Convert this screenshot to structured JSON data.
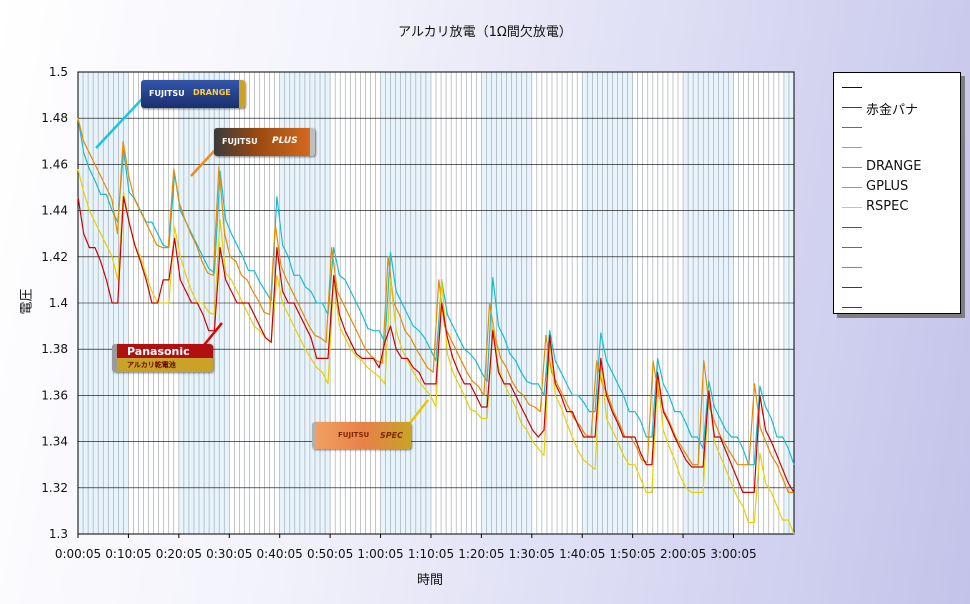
{
  "chart_data": {
    "type": "line",
    "title": "アルカリ放電（1Ω間欠放電）",
    "xlabel": "時間",
    "ylabel": "電圧",
    "ylim": [
      1.3,
      1.5
    ],
    "yticks": [
      "1.3",
      "1.32",
      "1.34",
      "1.36",
      "1.38",
      "1.4",
      "1.42",
      "1.44",
      "1.46",
      "1.48",
      "1.5"
    ],
    "xticks": [
      "0:00:05",
      "0:10:05",
      "0:20:05",
      "0:30:05",
      "0:40:05",
      "0:50:05",
      "1:00:05",
      "1:10:05",
      "1:20:05",
      "1:30:05",
      "1:40:05",
      "1:50:05",
      "2:00:05",
      "3:00:05"
    ],
    "legend_position": "right",
    "legend": [
      {
        "name": "",
        "color": "#00008b"
      },
      {
        "name": "赤金パナ",
        "color": "#cc0000"
      },
      {
        "name": "",
        "color": "#4169e1"
      },
      {
        "name": "",
        "color": "#ff8c00"
      },
      {
        "name": "DRANGE",
        "color": "#17becf"
      },
      {
        "name": "GPLUS",
        "color": "#e88a00"
      },
      {
        "name": "RSPEC",
        "color": "#e8d000"
      },
      {
        "name": "",
        "color": "#cc00cc"
      },
      {
        "name": "",
        "color": "#2e8b57"
      },
      {
        "name": "",
        "color": "#20b2aa"
      },
      {
        "name": "",
        "color": "#006400"
      },
      {
        "name": "",
        "color": "#cc0000"
      }
    ],
    "series": [
      {
        "name": "DRANGE",
        "color": "#17becf",
        "values": [
          1.48,
          1.465,
          1.458,
          1.453,
          1.447,
          1.447,
          1.44,
          1.435,
          1.466,
          1.448,
          1.445,
          1.44,
          1.435,
          1.435,
          1.43,
          1.425,
          1.424,
          1.456,
          1.44,
          1.435,
          1.43,
          1.425,
          1.42,
          1.415,
          1.413,
          1.457,
          1.436,
          1.43,
          1.425,
          1.42,
          1.414,
          1.414,
          1.409,
          1.405,
          1.401,
          1.446,
          1.425,
          1.42,
          1.412,
          1.412,
          1.407,
          1.405,
          1.4,
          1.4,
          1.395,
          1.424,
          1.412,
          1.41,
          1.405,
          1.4,
          1.395,
          1.389,
          1.388,
          1.388,
          1.383,
          1.422,
          1.405,
          1.4,
          1.395,
          1.39,
          1.388,
          1.385,
          1.38,
          1.375,
          1.41,
          1.395,
          1.39,
          1.385,
          1.38,
          1.378,
          1.375,
          1.37,
          1.366,
          1.411,
          1.39,
          1.385,
          1.378,
          1.375,
          1.37,
          1.366,
          1.365,
          1.365,
          1.36,
          1.388,
          1.375,
          1.37,
          1.365,
          1.36,
          1.36,
          1.357,
          1.353,
          1.353,
          1.387,
          1.375,
          1.37,
          1.365,
          1.36,
          1.353,
          1.353,
          1.349,
          1.342,
          1.342,
          1.376,
          1.365,
          1.36,
          1.353,
          1.353,
          1.348,
          1.342,
          1.342,
          1.337,
          1.366,
          1.355,
          1.35,
          1.345,
          1.342,
          1.342,
          1.337,
          1.33,
          1.33,
          1.364,
          1.355,
          1.35,
          1.342,
          1.342,
          1.337,
          1.33
        ]
      },
      {
        "name": "GPLUS",
        "color": "#e88a00",
        "values": [
          1.48,
          1.47,
          1.465,
          1.46,
          1.455,
          1.45,
          1.445,
          1.43,
          1.47,
          1.455,
          1.445,
          1.44,
          1.435,
          1.43,
          1.425,
          1.424,
          1.424,
          1.458,
          1.443,
          1.436,
          1.43,
          1.425,
          1.418,
          1.413,
          1.412,
          1.459,
          1.43,
          1.42,
          1.418,
          1.412,
          1.41,
          1.405,
          1.401,
          1.396,
          1.395,
          1.434,
          1.416,
          1.41,
          1.405,
          1.4,
          1.395,
          1.39,
          1.386,
          1.385,
          1.383,
          1.424,
          1.405,
          1.4,
          1.395,
          1.39,
          1.385,
          1.38,
          1.377,
          1.375,
          1.374,
          1.42,
          1.4,
          1.395,
          1.388,
          1.385,
          1.38,
          1.376,
          1.372,
          1.37,
          1.41,
          1.39,
          1.385,
          1.38,
          1.375,
          1.37,
          1.366,
          1.364,
          1.36,
          1.4,
          1.385,
          1.376,
          1.372,
          1.366,
          1.362,
          1.36,
          1.356,
          1.355,
          1.353,
          1.386,
          1.37,
          1.365,
          1.36,
          1.355,
          1.35,
          1.347,
          1.343,
          1.342,
          1.375,
          1.365,
          1.36,
          1.353,
          1.348,
          1.342,
          1.342,
          1.338,
          1.332,
          1.331,
          1.375,
          1.36,
          1.353,
          1.348,
          1.342,
          1.338,
          1.334,
          1.33,
          1.33,
          1.375,
          1.355,
          1.348,
          1.342,
          1.338,
          1.334,
          1.33,
          1.33,
          1.33,
          1.365,
          1.346,
          1.34,
          1.334,
          1.33,
          1.324,
          1.318,
          1.318
        ]
      },
      {
        "name": "RSPEC",
        "color": "#e8d000",
        "values": [
          1.458,
          1.448,
          1.44,
          1.435,
          1.43,
          1.425,
          1.42,
          1.41,
          1.448,
          1.435,
          1.425,
          1.42,
          1.412,
          1.405,
          1.4,
          1.4,
          1.4,
          1.433,
          1.42,
          1.412,
          1.405,
          1.4,
          1.4,
          1.396,
          1.395,
          1.436,
          1.413,
          1.41,
          1.405,
          1.4,
          1.395,
          1.39,
          1.388,
          1.385,
          1.383,
          1.412,
          1.4,
          1.395,
          1.39,
          1.385,
          1.38,
          1.376,
          1.372,
          1.37,
          1.365,
          1.41,
          1.39,
          1.385,
          1.38,
          1.377,
          1.375,
          1.372,
          1.37,
          1.368,
          1.365,
          1.41,
          1.388,
          1.38,
          1.375,
          1.37,
          1.366,
          1.363,
          1.36,
          1.355,
          1.41,
          1.378,
          1.37,
          1.365,
          1.36,
          1.354,
          1.353,
          1.35,
          1.35,
          1.39,
          1.372,
          1.365,
          1.36,
          1.355,
          1.348,
          1.345,
          1.34,
          1.337,
          1.334,
          1.384,
          1.36,
          1.355,
          1.348,
          1.342,
          1.336,
          1.332,
          1.33,
          1.328,
          1.375,
          1.35,
          1.345,
          1.34,
          1.334,
          1.33,
          1.33,
          1.324,
          1.318,
          1.318,
          1.368,
          1.345,
          1.338,
          1.332,
          1.325,
          1.32,
          1.318,
          1.318,
          1.318,
          1.363,
          1.34,
          1.334,
          1.328,
          1.322,
          1.316,
          1.312,
          1.305,
          1.305,
          1.335,
          1.322,
          1.318,
          1.312,
          1.306,
          1.306,
          1.3
        ]
      },
      {
        "name": "赤金パナ",
        "color": "#cc0000",
        "values": [
          1.446,
          1.43,
          1.424,
          1.424,
          1.418,
          1.41,
          1.4,
          1.4,
          1.446,
          1.435,
          1.425,
          1.418,
          1.41,
          1.4,
          1.4,
          1.41,
          1.41,
          1.428,
          1.41,
          1.405,
          1.4,
          1.4,
          1.395,
          1.388,
          1.388,
          1.424,
          1.41,
          1.405,
          1.4,
          1.4,
          1.4,
          1.395,
          1.39,
          1.385,
          1.383,
          1.424,
          1.405,
          1.4,
          1.4,
          1.395,
          1.39,
          1.385,
          1.376,
          1.376,
          1.376,
          1.412,
          1.395,
          1.388,
          1.383,
          1.378,
          1.376,
          1.376,
          1.376,
          1.372,
          1.383,
          1.39,
          1.38,
          1.376,
          1.376,
          1.372,
          1.37,
          1.365,
          1.365,
          1.365,
          1.4,
          1.385,
          1.376,
          1.37,
          1.365,
          1.365,
          1.36,
          1.355,
          1.355,
          1.388,
          1.37,
          1.365,
          1.365,
          1.36,
          1.355,
          1.35,
          1.345,
          1.342,
          1.345,
          1.386,
          1.365,
          1.36,
          1.353,
          1.353,
          1.347,
          1.342,
          1.342,
          1.342,
          1.376,
          1.36,
          1.353,
          1.348,
          1.342,
          1.342,
          1.342,
          1.335,
          1.33,
          1.33,
          1.37,
          1.353,
          1.348,
          1.342,
          1.337,
          1.332,
          1.329,
          1.329,
          1.329,
          1.362,
          1.342,
          1.342,
          1.336,
          1.33,
          1.324,
          1.318,
          1.318,
          1.318,
          1.36,
          1.345,
          1.34,
          1.334,
          1.328,
          1.322,
          1.318
        ]
      }
    ]
  },
  "annotations": {
    "fujitsu_brand": "FUJITSU",
    "drange_label": "DRANGE",
    "gplus_label": "PLUS",
    "panasonic_label": "Panasonic",
    "panasonic_sub": "アルカリ乾電池",
    "rspec_label": "SPEC"
  }
}
